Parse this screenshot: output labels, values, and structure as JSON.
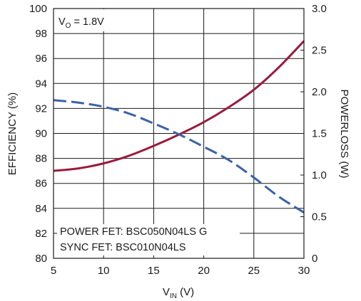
{
  "chart_data": {
    "type": "line",
    "xlabel_main": "V",
    "xlabel_sub": "IN",
    "xlabel_unit": " (V)",
    "ylabel_left": "EFFICIENCY (%)",
    "ylabel_right": "POWERLOSS (W)",
    "xlim": [
      5,
      30
    ],
    "ylim_left": [
      80,
      100
    ],
    "ylim_right": [
      0,
      3.0
    ],
    "x_ticks": [
      5,
      10,
      15,
      20,
      25,
      30
    ],
    "y_ticks_left": [
      80,
      82,
      84,
      86,
      88,
      90,
      92,
      94,
      96,
      98,
      100
    ],
    "y_ticks_right": [
      "0",
      "0.5",
      "1.0",
      "1.5",
      "2.0",
      "2.5",
      "3.0"
    ],
    "grid": true,
    "annotation_vo_main": "V",
    "annotation_vo_sub": "O",
    "annotation_vo_value": " = 1.8V",
    "annotation_line1": "POWER FET: BSC050N04LS G",
    "annotation_line2": "SYNC FET: BSC010N04LS",
    "series": [
      {
        "axis": "left",
        "color": "#9b1b3c",
        "style": "solid",
        "x": [
          5,
          7.5,
          10,
          12.5,
          15,
          17.5,
          20,
          22.5,
          25,
          27.5,
          30
        ],
        "values": [
          87.0,
          87.2,
          87.6,
          88.2,
          89.0,
          89.9,
          90.9,
          92.1,
          93.5,
          95.3,
          97.4
        ]
      },
      {
        "axis": "right",
        "color": "#3a62a8",
        "style": "dashed",
        "x": [
          5,
          7.5,
          10,
          12.5,
          15,
          17.5,
          20,
          22.5,
          25,
          27.5,
          30
        ],
        "values": [
          1.9,
          1.87,
          1.82,
          1.74,
          1.62,
          1.49,
          1.34,
          1.18,
          0.97,
          0.74,
          0.55
        ]
      }
    ]
  }
}
